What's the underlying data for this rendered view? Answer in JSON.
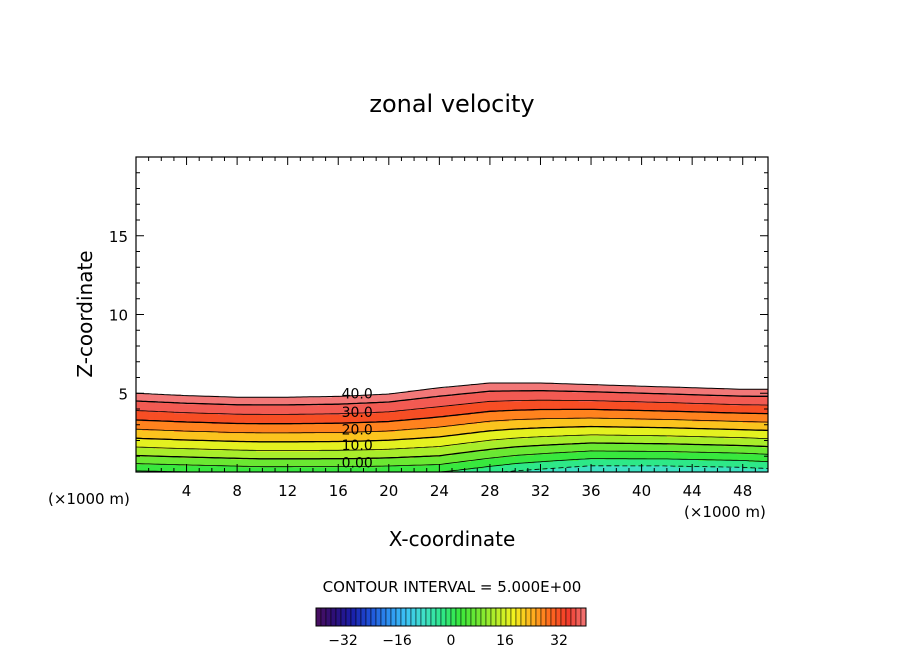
{
  "chart_data": {
    "type": "contour",
    "title": "zonal velocity",
    "xlabel": "X-coordinate",
    "ylabel": "Z-coordinate",
    "xlim": [
      0,
      50
    ],
    "ylim": [
      0,
      20
    ],
    "x_ticks": [
      4,
      8,
      12,
      16,
      20,
      24,
      28,
      32,
      36,
      40,
      44,
      48
    ],
    "x_tick_labels": [
      "4",
      "8",
      "12",
      "16",
      "20",
      "24",
      "28",
      "32",
      "36",
      "40",
      "44",
      "48"
    ],
    "y_ticks": [
      5,
      10,
      15
    ],
    "y_tick_labels": [
      "5",
      "10",
      "15"
    ],
    "x_unit_left": "(×1000 m)",
    "x_unit_right": "(×1000 m)",
    "contour_interval_label": "CONTOUR INTERVAL = 5.000E+00",
    "contour_labels": [
      {
        "text": "40.0",
        "x": 17.5,
        "z": 5.0
      },
      {
        "text": "30.0",
        "x": 17.5,
        "z": 3.8
      },
      {
        "text": "20.0",
        "x": 17.5,
        "z": 2.7
      },
      {
        "text": "10.0",
        "x": 17.5,
        "z": 1.7
      },
      {
        "text": "0.00",
        "x": 17.5,
        "z": 0.6
      }
    ],
    "profile_x": [
      0,
      4,
      8,
      12,
      16,
      20,
      24,
      28,
      32,
      36,
      40,
      44,
      48,
      50
    ],
    "profile_scale": [
      1.0,
      0.97,
      0.95,
      0.95,
      0.96,
      0.99,
      1.07,
      1.13,
      1.13,
      1.11,
      1.09,
      1.07,
      1.05,
      1.05
    ],
    "surface_value_x": [
      0,
      10,
      18,
      24,
      30,
      36,
      42,
      48,
      50
    ],
    "surface_value": [
      -1,
      1,
      1,
      0,
      -6,
      -10,
      -10,
      -9,
      -8
    ],
    "top_value": 44,
    "field_top_z": 5.0,
    "colorbar": {
      "range": [
        -40,
        40
      ],
      "ticks": [
        -32,
        -16,
        0,
        16,
        32
      ],
      "tick_labels": [
        "−32",
        "−16",
        "0",
        "16",
        "32"
      ],
      "colors": [
        "#4b0f5e",
        "#2d0f78",
        "#1a1ea8",
        "#1e50d8",
        "#2c8ef0",
        "#3cc3f5",
        "#3fe0c8",
        "#2ee88a",
        "#38e83c",
        "#70e832",
        "#b4ee2a",
        "#f2f21e",
        "#ffb21e",
        "#ff6a1e",
        "#f23a2a",
        "#f27878"
      ]
    }
  }
}
